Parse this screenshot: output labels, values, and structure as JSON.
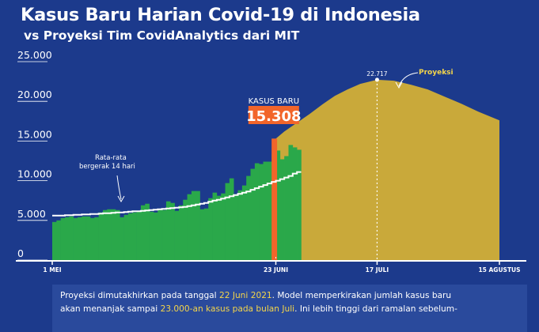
{
  "header": {
    "title": "Kasus Baru Harian Covid-19 di Indonesia",
    "subtitle": "vs Proyeksi Tim CovidAnalytics dari MIT"
  },
  "colors": {
    "background": "#1c3a8c",
    "actual_bars": "#2aa84a",
    "latest_bar": "#f2652a",
    "projection": "#c9a93a",
    "moving_average": "#ffffff",
    "highlight_text": "#f4d54a"
  },
  "chart_data": {
    "type": "bar",
    "ylim": [
      0,
      25000
    ],
    "yticks": [
      {
        "value": 0,
        "label": "0"
      },
      {
        "value": 5000,
        "label": "5.000"
      },
      {
        "value": 10000,
        "label": "10.000"
      },
      {
        "value": 15000,
        "label": "15.000"
      },
      {
        "value": 20000,
        "label": "20.000"
      },
      {
        "value": 25000,
        "label": "25.000"
      }
    ],
    "xlim": [
      "2021-05-01",
      "2021-08-15"
    ],
    "xticks": [
      {
        "date": "2021-05-01",
        "label": "1 MEI"
      },
      {
        "date": "2021-06-23",
        "label": "23 JUNI"
      },
      {
        "date": "2021-07-17",
        "label": "17 JULI"
      },
      {
        "date": "2021-08-15",
        "label": "15 AGUSTUS"
      }
    ],
    "daily_cases": {
      "start_date": "2021-05-01",
      "values": [
        4800,
        5000,
        5300,
        5400,
        5500,
        5300,
        5400,
        5500,
        5500,
        5300,
        5400,
        6000,
        6300,
        6400,
        6400,
        6300,
        5400,
        5700,
        5900,
        6000,
        6200,
        6900,
        7100,
        6100,
        6000,
        6400,
        6300,
        7400,
        7200,
        6200,
        6900,
        7600,
        8300,
        8700,
        8700,
        6400,
        6500,
        7800,
        8500,
        8100,
        8400,
        9700,
        10300,
        8300,
        8800,
        9400,
        10600,
        11500,
        12200,
        12100,
        12400,
        12400,
        13300,
        13800,
        12700,
        13100,
        14500,
        14200,
        13900
      ],
      "latest": {
        "date": "2021-06-22",
        "value": 15308,
        "label": "KASUS BARU",
        "value_label": "15.308"
      }
    },
    "moving_average": {
      "name": "Rata-rata bergerak 14 hari",
      "name_lines": [
        "Rata-rata",
        "bergerak 14 hari"
      ],
      "start_date": "2021-05-01",
      "values": [
        5600,
        5600,
        5600,
        5650,
        5650,
        5700,
        5700,
        5750,
        5750,
        5800,
        5800,
        5850,
        5900,
        5900,
        5950,
        6000,
        6000,
        6050,
        6100,
        6150,
        6150,
        6200,
        6250,
        6300,
        6350,
        6400,
        6450,
        6500,
        6550,
        6600,
        6650,
        6700,
        6800,
        6900,
        7000,
        7100,
        7200,
        7350,
        7500,
        7600,
        7750,
        7900,
        8050,
        8200,
        8350,
        8500,
        8650,
        8850,
        9050,
        9250,
        9450,
        9650,
        9850,
        10000,
        10200,
        10400,
        10600,
        10900,
        11100
      ]
    },
    "projection": {
      "name": "Proyeksi",
      "peak": {
        "date": "2021-07-17",
        "value": 22717,
        "label": "22.717"
      },
      "points": [
        {
          "date": "2021-06-23",
          "value": 15300
        },
        {
          "date": "2021-06-25",
          "value": 16200
        },
        {
          "date": "2021-06-28",
          "value": 17300
        },
        {
          "date": "2021-07-01",
          "value": 18400
        },
        {
          "date": "2021-07-04",
          "value": 19600
        },
        {
          "date": "2021-07-07",
          "value": 20700
        },
        {
          "date": "2021-07-10",
          "value": 21500
        },
        {
          "date": "2021-07-13",
          "value": 22200
        },
        {
          "date": "2021-07-17",
          "value": 22717
        },
        {
          "date": "2021-07-21",
          "value": 22600
        },
        {
          "date": "2021-07-25",
          "value": 22100
        },
        {
          "date": "2021-07-29",
          "value": 21500
        },
        {
          "date": "2021-08-02",
          "value": 20600
        },
        {
          "date": "2021-08-06",
          "value": 19700
        },
        {
          "date": "2021-08-10",
          "value": 18700
        },
        {
          "date": "2021-08-15",
          "value": 17600
        }
      ]
    }
  },
  "note": {
    "p1": "Proyeksi dimutakhirkan pada tanggal ",
    "date": "22 Juni 2021",
    "p2": ". Model memperkirakan jumlah kasus baru",
    "p3": "akan menanjak sampai ",
    "peak_text": "23.000-an kasus pada bulan Juli",
    "p4": ". Ini lebih tinggi dari ramalan sebelum-"
  }
}
